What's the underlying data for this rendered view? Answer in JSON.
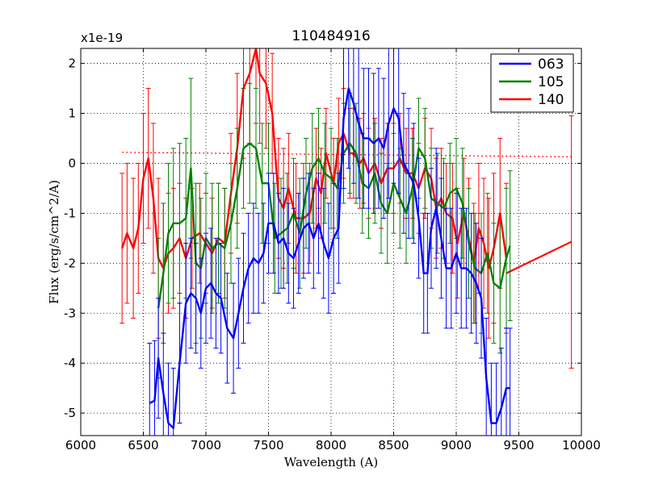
{
  "chart_data": {
    "type": "line",
    "title": "110484916",
    "xlabel": "Wavelength (A)",
    "ylabel": "Flux (erg/s/cm^2/A)",
    "y_scale_label": "x1e-19",
    "xlim": [
      6000,
      10000
    ],
    "ylim": [
      -5.45,
      2.3
    ],
    "xticks": [
      6000,
      6500,
      7000,
      7500,
      8000,
      8500,
      9000,
      9500,
      10000
    ],
    "yticks": [
      -5,
      -4,
      -3,
      -2,
      -1,
      0,
      1,
      2
    ],
    "grid": true,
    "legend_position": "top-right",
    "series": [
      {
        "name": "140",
        "color": "#ff0000",
        "x": [
          6330,
          6370,
          6420,
          6460,
          6500,
          6540,
          6580,
          6620,
          6660,
          6700,
          6740,
          6790,
          6840,
          6890,
          6950,
          7000,
          7050,
          7100,
          7150,
          7200,
          7250,
          7300,
          7350,
          7400,
          7430,
          7480,
          7530,
          7580,
          7620,
          7660,
          7720,
          7780,
          7830,
          7880,
          7920,
          7960,
          8020,
          8060,
          8100,
          8150,
          8180,
          8230,
          8260,
          8300,
          8350,
          8400,
          8450,
          8500,
          8550,
          8600,
          8650,
          8700,
          8750,
          8800,
          8840,
          8880,
          8920,
          8970,
          9010,
          9060,
          9100,
          9140,
          9180,
          9220,
          9260,
          9300,
          9350,
          9400
        ],
        "y": [
          -1.7,
          -1.4,
          -1.7,
          -1.3,
          -0.3,
          0.1,
          -0.7,
          -1.9,
          -2.1,
          -1.8,
          -1.7,
          -1.5,
          -1.9,
          -1.5,
          -1.4,
          -1.6,
          -1.8,
          -1.5,
          -1.6,
          -0.6,
          0.3,
          1.5,
          1.8,
          2.3,
          1.8,
          1.6,
          1.0,
          -0.7,
          -0.9,
          -0.5,
          -1.1,
          -1.1,
          -1.0,
          -0.3,
          -0.6,
          0.2,
          -0.4,
          0.4,
          0.6,
          0.2,
          0.2,
          0.0,
          0.1,
          -0.2,
          0.0,
          -0.4,
          -0.1,
          -0.1,
          0.1,
          -0.2,
          -0.2,
          -0.5,
          -0.1,
          -0.3,
          -0.9,
          -0.7,
          -1.0,
          -1.1,
          -1.6,
          -1.0,
          -1.5,
          -2.0,
          -1.3,
          -1.6,
          -2.1,
          -1.7,
          -1.0,
          -1.9
        ],
        "err": [
          1.5,
          1.4,
          1.4,
          1.3,
          1.3,
          1.4,
          1.5,
          1.6,
          1.3,
          1.2,
          1.2,
          1.1,
          1.2,
          1.0,
          1.0,
          1.0,
          1.1,
          1.1,
          1.1,
          1.2,
          1.5,
          1.4,
          1.4,
          1.5,
          1.4,
          1.3,
          1.2,
          1.2,
          1.2,
          1.1,
          1.1,
          1.1,
          1.0,
          1.0,
          0.9,
          0.9,
          0.9,
          0.9,
          0.9,
          0.9,
          0.9,
          0.9,
          0.9,
          0.9,
          0.9,
          0.9,
          0.9,
          0.9,
          0.9,
          0.9,
          0.9,
          0.9,
          1.0,
          1.0,
          1.0,
          1.0,
          1.0,
          1.1,
          1.1,
          1.1,
          1.2,
          1.2,
          1.3,
          1.3,
          1.4,
          1.5,
          1.5,
          1.5
        ],
        "tail": {
          "x": [
            9400,
            9920
          ],
          "y": [
            -2.2,
            -1.57
          ],
          "err_x": 9920,
          "err_low": -4.1,
          "err_high": 0.95
        }
      },
      {
        "name": "105",
        "color": "#008000",
        "x": [
          6620,
          6660,
          6700,
          6740,
          6790,
          6840,
          6880,
          6920,
          6960,
          7000,
          7050,
          7100,
          7150,
          7200,
          7250,
          7300,
          7350,
          7400,
          7450,
          7500,
          7550,
          7600,
          7650,
          7700,
          7750,
          7800,
          7850,
          7900,
          7950,
          8000,
          8050,
          8100,
          8150,
          8200,
          8250,
          8300,
          8350,
          8400,
          8450,
          8500,
          8550,
          8600,
          8650,
          8700,
          8750,
          8800,
          8850,
          8900,
          8950,
          9000,
          9050,
          9100,
          9150,
          9200,
          9250,
          9300,
          9350,
          9400,
          9430
        ],
        "y": [
          -2.9,
          -2.2,
          -1.4,
          -1.2,
          -1.2,
          -1.1,
          -0.1,
          -2.0,
          -2.1,
          -1.5,
          -1.7,
          -1.6,
          -1.7,
          -1.2,
          -0.5,
          0.3,
          0.4,
          0.3,
          -0.4,
          -0.4,
          -1.5,
          -1.4,
          -1.3,
          -1.0,
          -1.4,
          -0.6,
          -0.1,
          0.1,
          -0.2,
          -0.3,
          -0.5,
          0.2,
          0.4,
          0.2,
          -0.4,
          -0.5,
          -0.2,
          -0.8,
          -1.0,
          -0.4,
          -0.7,
          -1.0,
          -0.5,
          0.3,
          0.1,
          -0.7,
          -0.8,
          -0.9,
          -0.6,
          -0.5,
          -0.8,
          -1.6,
          -2.1,
          -2.2,
          -1.8,
          -2.4,
          -2.5,
          -1.9,
          -1.65
        ],
        "err": [
          1.4,
          1.4,
          1.4,
          1.5,
          1.6,
          1.6,
          1.8,
          1.6,
          1.4,
          1.3,
          1.3,
          1.2,
          1.2,
          1.2,
          1.2,
          1.2,
          1.2,
          1.2,
          1.2,
          1.2,
          1.1,
          1.1,
          1.1,
          1.1,
          1.1,
          1.1,
          1.1,
          1.0,
          1.0,
          1.0,
          1.0,
          1.0,
          1.0,
          1.0,
          1.0,
          1.0,
          1.0,
          1.0,
          1.0,
          1.0,
          1.0,
          1.0,
          1.0,
          1.0,
          1.0,
          1.0,
          1.0,
          1.0,
          1.0,
          1.0,
          1.1,
          1.1,
          1.1,
          1.2,
          1.2,
          1.2,
          1.3,
          1.4,
          1.5
        ]
      },
      {
        "name": "063",
        "color": "#0000ff",
        "x": [
          6550,
          6590,
          6620,
          6660,
          6700,
          6740,
          6790,
          6840,
          6880,
          6920,
          6960,
          7000,
          7040,
          7080,
          7120,
          7170,
          7220,
          7260,
          7300,
          7340,
          7380,
          7420,
          7460,
          7500,
          7540,
          7580,
          7620,
          7660,
          7700,
          7740,
          7780,
          7820,
          7860,
          7900,
          7940,
          7980,
          8020,
          8060,
          8100,
          8140,
          8180,
          8220,
          8260,
          8300,
          8340,
          8380,
          8420,
          8460,
          8500,
          8540,
          8580,
          8620,
          8660,
          8700,
          8740,
          8770,
          8800,
          8840,
          8880,
          8920,
          8960,
          9000,
          9040,
          9080,
          9120,
          9160,
          9200,
          9240,
          9280,
          9320,
          9360,
          9400,
          9430
        ],
        "y": [
          -4.8,
          -4.75,
          -3.9,
          -4.6,
          -5.2,
          -5.3,
          -4.0,
          -2.8,
          -2.6,
          -2.7,
          -3.0,
          -2.5,
          -2.4,
          -2.6,
          -2.7,
          -3.3,
          -3.5,
          -3.0,
          -2.5,
          -2.1,
          -1.9,
          -2.0,
          -1.8,
          -1.2,
          -1.2,
          -1.6,
          -1.5,
          -1.8,
          -1.9,
          -1.6,
          -1.3,
          -1.2,
          -1.5,
          -1.2,
          -1.6,
          -1.9,
          -1.5,
          -1.3,
          0.9,
          1.5,
          1.2,
          0.8,
          0.5,
          0.5,
          0.4,
          0.5,
          0.3,
          0.8,
          1.1,
          0.9,
          0.0,
          -0.2,
          -0.4,
          -1.1,
          -2.2,
          -2.2,
          -1.3,
          -0.9,
          -1.5,
          -2.1,
          -2.1,
          -1.8,
          -2.1,
          -2.1,
          -2.2,
          -2.4,
          -2.7,
          -4.3,
          -5.2,
          -5.2,
          -4.9,
          -4.5,
          -4.5
        ],
        "err": [
          1.2,
          1.2,
          1.2,
          1.2,
          1.2,
          1.2,
          1.2,
          1.2,
          1.1,
          1.1,
          1.1,
          1.1,
          1.1,
          1.1,
          1.1,
          1.1,
          1.1,
          1.1,
          1.1,
          1.1,
          1.1,
          1.0,
          1.0,
          1.0,
          1.0,
          1.0,
          1.0,
          1.0,
          1.0,
          1.0,
          1.0,
          1.0,
          1.0,
          1.0,
          1.1,
          1.1,
          1.1,
          1.1,
          1.4,
          1.6,
          1.6,
          1.5,
          1.4,
          1.4,
          1.4,
          1.4,
          1.4,
          1.5,
          1.5,
          1.5,
          1.4,
          1.3,
          1.2,
          1.2,
          1.2,
          1.2,
          1.2,
          1.2,
          1.2,
          1.2,
          1.2,
          1.2,
          1.2,
          1.2,
          1.2,
          1.2,
          1.2,
          1.2,
          1.2,
          1.2,
          1.2,
          1.2,
          1.2
        ]
      }
    ],
    "continuum": {
      "color": "#ff0000",
      "x": [
        6330,
        9920
      ],
      "y": [
        0.22,
        0.13
      ]
    }
  }
}
